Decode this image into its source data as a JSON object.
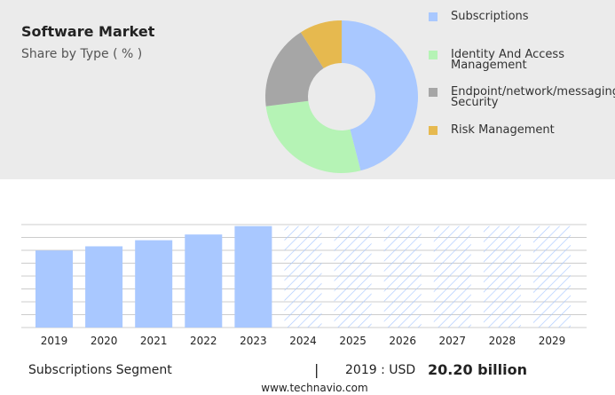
{
  "header": {
    "title": "Software Market",
    "subtitle": "Share by Type ( % )"
  },
  "colors": {
    "subscriptions": "#a9c8ff",
    "identity": "#b5f3b5",
    "endpoint": "#a6a6a6",
    "risk": "#e6b94f",
    "forecast_hatch": "#a9c8ff",
    "gridline": "#cccccc",
    "panel": "#ebebeb"
  },
  "chart_data": [
    {
      "type": "pie",
      "title": "Share by Type ( % )",
      "labels": [
        "Subscriptions",
        "Identity And Access Management",
        "Endpoint/network/messaging Security",
        "Risk Management"
      ],
      "legend_labels": [
        "Subscriptions",
        "Identity And Access\nManagement",
        "Endpoint/network/messaging\nSecurity",
        "Risk Management"
      ],
      "values": [
        46,
        27,
        18,
        9
      ],
      "legend_position": "right"
    },
    {
      "type": "bar",
      "categories": [
        "2019",
        "2020",
        "2021",
        "2022",
        "2023",
        "2024",
        "2025",
        "2026",
        "2027",
        "2028",
        "2029"
      ],
      "values": [
        20.2,
        21.3,
        22.9,
        24.4,
        26.6,
        26.6,
        26.6,
        26.6,
        26.6,
        26.6,
        26.6
      ],
      "forecast_from_index": 5,
      "ylim": [
        0,
        27
      ],
      "grid": true,
      "series": [
        {
          "name": "Subscriptions"
        }
      ]
    }
  ],
  "footer": {
    "segment": "Subscriptions Segment",
    "divider": "|",
    "year_label": "2019 : USD",
    "value": "20.20 billion",
    "source": "www.technavio.com"
  }
}
